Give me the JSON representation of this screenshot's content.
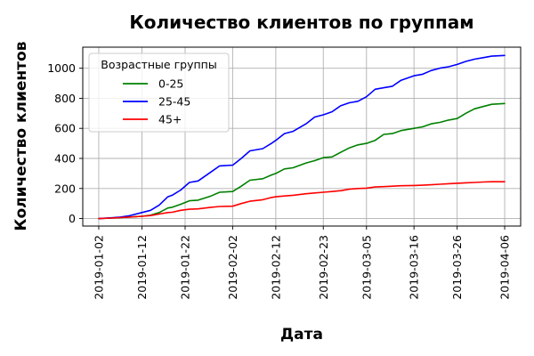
{
  "chart_data": {
    "type": "line",
    "title": "Количество клиентов по группам",
    "xlabel": "Дата",
    "ylabel": "Количество клиентов",
    "x": [
      "2019-01-02",
      "2019-01-05",
      "2019-01-07",
      "2019-01-09",
      "2019-01-12",
      "2019-01-14",
      "2019-01-16",
      "2019-01-18",
      "2019-01-19",
      "2019-01-21",
      "2019-01-23",
      "2019-01-25",
      "2019-01-28",
      "2019-01-30",
      "2019-02-02",
      "2019-02-04",
      "2019-02-06",
      "2019-02-09",
      "2019-02-11",
      "2019-02-12",
      "2019-02-14",
      "2019-02-16",
      "2019-02-19",
      "2019-02-21",
      "2019-02-23",
      "2019-02-25",
      "2019-02-27",
      "2019-03-01",
      "2019-03-03",
      "2019-03-05",
      "2019-03-07",
      "2019-03-09",
      "2019-03-11",
      "2019-03-13",
      "2019-03-16",
      "2019-03-18",
      "2019-03-20",
      "2019-03-22",
      "2019-03-24",
      "2019-03-26",
      "2019-03-28",
      "2019-03-30",
      "2019-04-01",
      "2019-04-03",
      "2019-04-06"
    ],
    "xticks": [
      "2019-01-02",
      "2019-01-12",
      "2019-01-22",
      "2019-02-02",
      "2019-02-12",
      "2019-02-23",
      "2019-03-05",
      "2019-03-16",
      "2019-03-26",
      "2019-04-06"
    ],
    "ylim": [
      -50,
      1140
    ],
    "yticks": [
      0,
      200,
      400,
      600,
      800,
      1000
    ],
    "grid": true,
    "legend": {
      "title": "Возрастные группы",
      "position": "top-left"
    },
    "series": [
      {
        "name": "0-25",
        "color": "#008000",
        "values": [
          0,
          3,
          6,
          10,
          15,
          22,
          40,
          70,
          75,
          95,
          118,
          122,
          150,
          175,
          180,
          215,
          255,
          265,
          290,
          300,
          330,
          338,
          370,
          385,
          405,
          410,
          440,
          470,
          490,
          500,
          520,
          560,
          565,
          585,
          600,
          610,
          630,
          640,
          655,
          665,
          700,
          730,
          745,
          760,
          765
        ]
      },
      {
        "name": "25-45",
        "color": "#0000ff",
        "values": [
          0,
          5,
          10,
          18,
          40,
          55,
          90,
          145,
          155,
          190,
          240,
          250,
          310,
          350,
          355,
          400,
          450,
          465,
          500,
          520,
          565,
          580,
          630,
          675,
          690,
          710,
          750,
          770,
          780,
          810,
          860,
          870,
          880,
          920,
          950,
          960,
          985,
          1000,
          1010,
          1025,
          1045,
          1060,
          1070,
          1080,
          1085
        ]
      },
      {
        "name": "45+",
        "color": "#ff0000",
        "values": [
          0,
          3,
          6,
          10,
          15,
          20,
          30,
          40,
          42,
          55,
          62,
          64,
          75,
          80,
          82,
          100,
          115,
          125,
          140,
          145,
          150,
          155,
          165,
          170,
          175,
          180,
          185,
          195,
          200,
          202,
          210,
          212,
          215,
          218,
          220,
          222,
          225,
          228,
          232,
          235,
          238,
          240,
          243,
          245,
          245
        ]
      }
    ]
  }
}
